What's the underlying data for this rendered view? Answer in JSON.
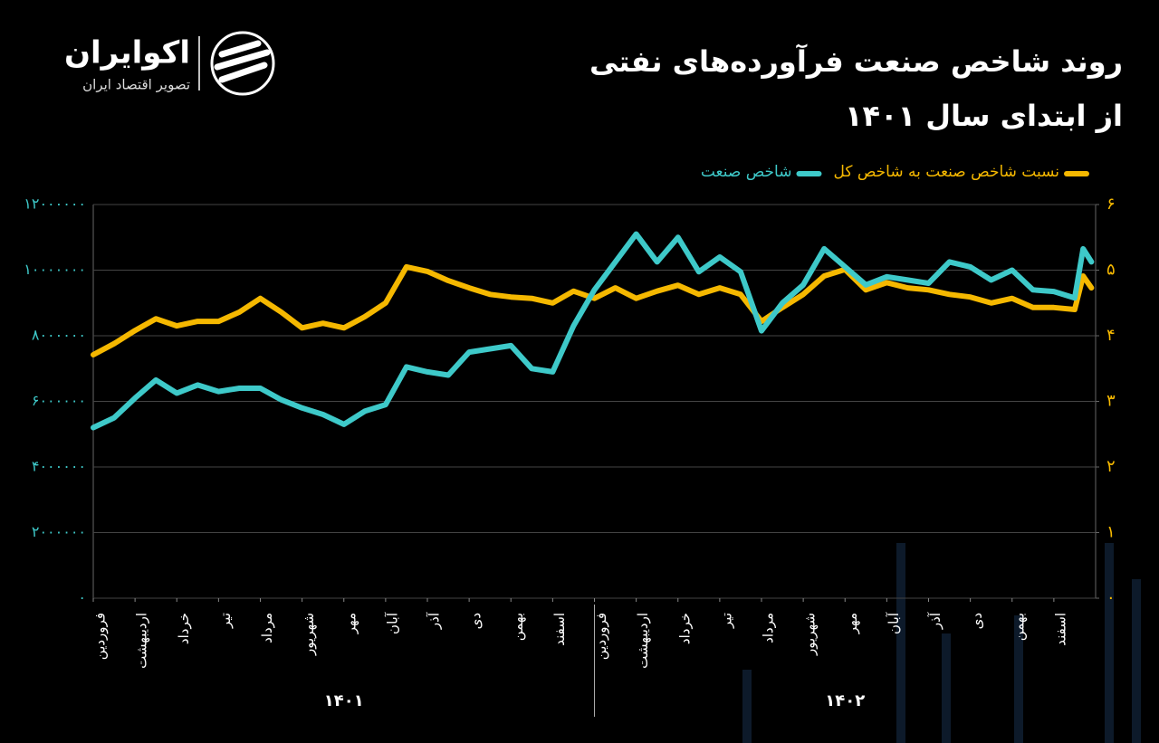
{
  "brand": {
    "name": "اکوایران",
    "tagline": "تصویر اقتصاد ایران"
  },
  "chart_data": {
    "type": "line",
    "title": "روند شاخص صنعت فرآورده‌های نفتی",
    "subtitle": "از ابتدای سال ۱۴۰۱",
    "x": [
      0,
      0.5,
      1,
      1.5,
      2,
      2.5,
      3,
      3.5,
      4,
      4.5,
      5,
      5.5,
      6,
      6.5,
      7,
      7.5,
      8,
      8.5,
      9,
      9.5,
      10,
      10.5,
      11,
      11.5,
      12,
      12.5,
      13,
      13.5,
      14,
      14.5,
      15,
      15.5,
      16,
      16.5,
      17,
      17.5,
      18,
      18.5,
      19,
      19.5,
      20,
      20.5,
      21,
      21.5,
      22,
      22.5,
      23,
      23.5,
      23.7,
      23.9
    ],
    "xlim": [
      0,
      24
    ],
    "xticks": [
      {
        "value": 0,
        "label": "فروردین"
      },
      {
        "value": 1,
        "label": "اردیبهشت"
      },
      {
        "value": 2,
        "label": "خرداد"
      },
      {
        "value": 3,
        "label": "تیر"
      },
      {
        "value": 4,
        "label": "مرداد"
      },
      {
        "value": 5,
        "label": "شهریور"
      },
      {
        "value": 6,
        "label": "مهر"
      },
      {
        "value": 7,
        "label": "آبان"
      },
      {
        "value": 8,
        "label": "آذر"
      },
      {
        "value": 9,
        "label": "دی"
      },
      {
        "value": 10,
        "label": "بهمن"
      },
      {
        "value": 11,
        "label": "اسفند"
      },
      {
        "value": 12,
        "label": "فروردین"
      },
      {
        "value": 13,
        "label": "اردیبهشت"
      },
      {
        "value": 14,
        "label": "خرداد"
      },
      {
        "value": 15,
        "label": "تیر"
      },
      {
        "value": 16,
        "label": "مرداد"
      },
      {
        "value": 17,
        "label": "شهریور"
      },
      {
        "value": 18,
        "label": "مهر"
      },
      {
        "value": 19,
        "label": "آبان"
      },
      {
        "value": 20,
        "label": "آذر"
      },
      {
        "value": 21,
        "label": "دی"
      },
      {
        "value": 22,
        "label": "بهمن"
      },
      {
        "value": 23,
        "label": "اسفند"
      }
    ],
    "year_labels": [
      "۱۴۰۱",
      "۱۴۰۲"
    ],
    "ylim": [
      0,
      12000000
    ],
    "yticks": [
      {
        "value": 0,
        "label": "۰"
      },
      {
        "value": 2000000,
        "label": "۲۰۰۰۰۰۰"
      },
      {
        "value": 4000000,
        "label": "۴۰۰۰۰۰۰"
      },
      {
        "value": 6000000,
        "label": "۶۰۰۰۰۰۰"
      },
      {
        "value": 8000000,
        "label": "۸۰۰۰۰۰۰"
      },
      {
        "value": 10000000,
        "label": "۱۰۰۰۰۰۰۰"
      },
      {
        "value": 12000000,
        "label": "۱۲۰۰۰۰۰۰"
      }
    ],
    "y2lim": [
      0,
      6
    ],
    "y2ticks": [
      {
        "value": 0,
        "label": "۰"
      },
      {
        "value": 1,
        "label": "۱"
      },
      {
        "value": 2,
        "label": "۲"
      },
      {
        "value": 3,
        "label": "۳"
      },
      {
        "value": 4,
        "label": "۴"
      },
      {
        "value": 5,
        "label": "۵"
      },
      {
        "value": 6,
        "label": "۶"
      }
    ],
    "grid": true,
    "series": [
      {
        "name": "نسبت شاخص صنعت به شاخص کل",
        "color": "#f5b800",
        "axis": "y2",
        "values": [
          3.71,
          3.88,
          4.08,
          4.26,
          4.15,
          4.22,
          4.22,
          4.36,
          4.57,
          4.36,
          4.12,
          4.19,
          4.12,
          4.29,
          4.5,
          5.05,
          4.98,
          4.84,
          4.73,
          4.63,
          4.59,
          4.57,
          4.5,
          4.68,
          4.57,
          4.73,
          4.57,
          4.68,
          4.77,
          4.63,
          4.73,
          4.63,
          4.22,
          4.43,
          4.63,
          4.91,
          5.01,
          4.7,
          4.81,
          4.73,
          4.7,
          4.63,
          4.59,
          4.5,
          4.57,
          4.43,
          4.43,
          4.4,
          4.91,
          4.73
        ]
      },
      {
        "name": "شاخص صنعت",
        "color": "#3ec9c9",
        "axis": "y",
        "values": [
          5200000,
          5500000,
          6100000,
          6650000,
          6250000,
          6500000,
          6300000,
          6400000,
          6400000,
          6050000,
          5800000,
          5600000,
          5300000,
          5700000,
          5900000,
          7050000,
          6900000,
          6800000,
          7500000,
          7600000,
          7700000,
          7000000,
          6900000,
          8300000,
          9400000,
          10250000,
          11100000,
          10250000,
          11000000,
          9950000,
          10400000,
          9950000,
          8150000,
          9000000,
          9550000,
          10650000,
          10100000,
          9550000,
          9800000,
          9700000,
          9600000,
          10250000,
          10100000,
          9700000,
          10000000,
          9400000,
          9350000,
          9150000,
          10650000,
          10250000
        ]
      }
    ]
  }
}
